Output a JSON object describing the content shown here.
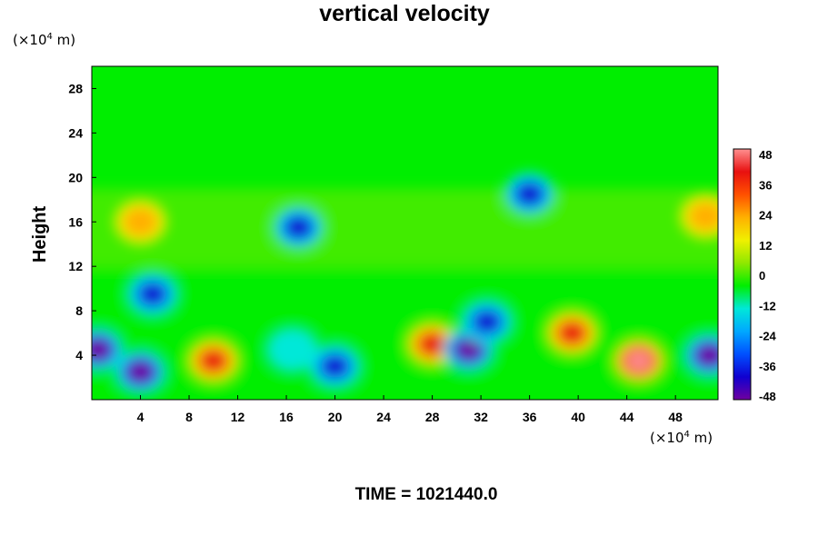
{
  "chart_data": {
    "type": "heatmap",
    "title": "vertical velocity",
    "ylabel": "Height",
    "x_unit": {
      "prefix": "(×10",
      "exp": "4",
      "suffix": " m)"
    },
    "y_unit": {
      "prefix": "(×10",
      "exp": "4",
      "suffix": " m)"
    },
    "xlim": [
      0,
      51.5
    ],
    "ylim": [
      0,
      30
    ],
    "x_ticks": [
      4,
      8,
      12,
      16,
      20,
      24,
      28,
      32,
      36,
      40,
      44,
      48
    ],
    "x_tick_labels": [
      "4",
      "8",
      "12",
      "16",
      "20",
      "24",
      "28",
      "32",
      "36",
      "40",
      "44",
      "48"
    ],
    "y_ticks": [
      4,
      8,
      12,
      16,
      20,
      24,
      28
    ],
    "y_tick_labels": [
      "4",
      "8",
      "12",
      "16",
      "20",
      "24",
      "28"
    ],
    "colorbar": {
      "range": [
        -48,
        48
      ],
      "ticks": [
        48,
        36,
        24,
        12,
        0,
        -12,
        -24,
        -36,
        -48
      ],
      "tick_labels": [
        "48",
        "36",
        "24",
        "12",
        "0",
        "-12",
        "-24",
        "-36",
        "-48"
      ]
    },
    "features": [
      {
        "x": 0.5,
        "y": 4.5,
        "value": -44
      },
      {
        "x": 4.0,
        "y": 2.5,
        "value": -48
      },
      {
        "x": 5.0,
        "y": 9.5,
        "value": -36
      },
      {
        "x": 10.0,
        "y": 3.5,
        "value": 40
      },
      {
        "x": 4.0,
        "y": 16.0,
        "value": 20
      },
      {
        "x": 16.5,
        "y": 4.5,
        "value": -16
      },
      {
        "x": 20.0,
        "y": 3.0,
        "value": -30
      },
      {
        "x": 17.0,
        "y": 15.5,
        "value": -30
      },
      {
        "x": 28.0,
        "y": 5.0,
        "value": 34
      },
      {
        "x": 31.0,
        "y": 4.5,
        "value": -48
      },
      {
        "x": 32.5,
        "y": 7.0,
        "value": -40
      },
      {
        "x": 36.0,
        "y": 18.5,
        "value": -30
      },
      {
        "x": 39.5,
        "y": 6.0,
        "value": 38
      },
      {
        "x": 45.0,
        "y": 3.5,
        "value": 46
      },
      {
        "x": 50.8,
        "y": 4.0,
        "value": -44
      },
      {
        "x": 50.5,
        "y": 16.5,
        "value": 20
      }
    ]
  },
  "footer": {
    "time_label": "TIME = 1021440.0"
  },
  "colors": {
    "background": "#00ee00",
    "colormap": [
      "#7000a0",
      "#1000d0",
      "#0050ff",
      "#00a8ff",
      "#00e8d8",
      "#00ee00",
      "#90e800",
      "#f0f000",
      "#ffb000",
      "#ff5000",
      "#e81010",
      "#ff9090"
    ]
  }
}
